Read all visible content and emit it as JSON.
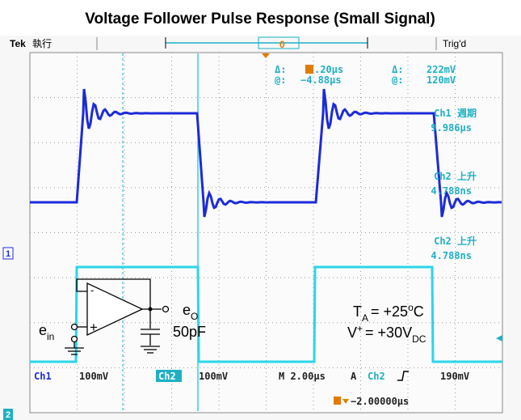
{
  "title": "Voltage Follower Pulse Response (Small Signal)",
  "status_bar": {
    "brand": "Tek",
    "mode": "執行",
    "trigger_marker": "0",
    "state": "Trig'd"
  },
  "cursor_readout": {
    "delta_label": "Δ:",
    "time_delta": ".20µs",
    "at_label": "@:",
    "time_at": "−4.88µs",
    "delta_label_2": "Δ:",
    "volt_delta": "222mV",
    "at_label_2": "@:",
    "volt_at": "120mV"
  },
  "measurements": [
    {
      "label": "Ch1 週期",
      "value": "9.986µs"
    },
    {
      "label": "Ch2 上升",
      "value": "4.788ns"
    },
    {
      "label": "Ch2 上升",
      "value": "4.788ns"
    }
  ],
  "settings": {
    "ch1": "Ch1",
    "ch1_scale": "100mV",
    "ch2": "Ch2",
    "ch2_scale": "100mV",
    "timebase": "M 2.00µs",
    "trigger_mode": "A",
    "trigger_source": "Ch2",
    "trigger_level": "190mV",
    "position": "−2.00000µs"
  },
  "markers": {
    "ch1": "1",
    "ch2": "2"
  },
  "circuit": {
    "output": "e",
    "output_sub": "O",
    "input": "e",
    "input_sub": "in",
    "capacitor": "50pF",
    "minus": "-",
    "plus": "+"
  },
  "conditions": {
    "temp_symbol": "T",
    "temp_sub": "A",
    "temp_value": "= +25",
    "degree": "o",
    "temp_unit": "C",
    "supply_symbol": "V",
    "supply_sup": "+",
    "supply_value": "= +30V",
    "supply_sub": "DC"
  }
}
